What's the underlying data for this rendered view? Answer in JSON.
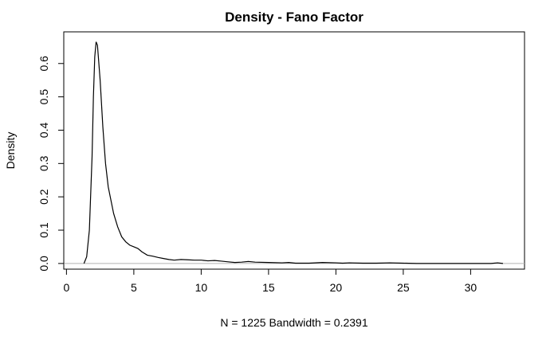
{
  "chart_data": {
    "type": "line",
    "title": "Density - Fano Factor",
    "xlabel": "N = 1225   Bandwidth = 0.2391",
    "ylabel": "Density",
    "xlim": [
      -0.2,
      34.0
    ],
    "ylim": [
      -0.017,
      0.695
    ],
    "xticks": [
      0,
      5,
      10,
      15,
      20,
      25,
      30
    ],
    "yticks": [
      0.0,
      0.1,
      0.2,
      0.3,
      0.4,
      0.5,
      0.6
    ],
    "baseline": 0,
    "grid": false,
    "series": [
      {
        "x": [
          1.3,
          1.5,
          1.7,
          1.9,
          2.0,
          2.1,
          2.2,
          2.3,
          2.5,
          2.7,
          2.9,
          3.1,
          3.3,
          3.5,
          3.8,
          4.1,
          4.4,
          4.7,
          5.0,
          5.3,
          5.6,
          6.0,
          6.4,
          6.8,
          7.2,
          7.6,
          8.0,
          8.5,
          9.0,
          9.5,
          10.0,
          10.5,
          11.0,
          11.5,
          12.0,
          12.5,
          13.0,
          13.5,
          14.0,
          15.0,
          16.0,
          16.5,
          17.0,
          18.0,
          19.0,
          20.0,
          20.5,
          21.0,
          22.0,
          23.0,
          24.0,
          25.0,
          26.0,
          28.0,
          30.0,
          31.5,
          32.0,
          32.4
        ],
        "y": [
          0.0,
          0.02,
          0.1,
          0.32,
          0.5,
          0.62,
          0.665,
          0.655,
          0.55,
          0.41,
          0.3,
          0.23,
          0.19,
          0.15,
          0.11,
          0.08,
          0.065,
          0.055,
          0.05,
          0.045,
          0.035,
          0.025,
          0.022,
          0.018,
          0.015,
          0.012,
          0.01,
          0.012,
          0.011,
          0.01,
          0.01,
          0.008,
          0.009,
          0.007,
          0.005,
          0.003,
          0.004,
          0.006,
          0.004,
          0.003,
          0.002,
          0.003,
          0.001,
          0.001,
          0.003,
          0.002,
          0.001,
          0.002,
          0.001,
          0.001,
          0.002,
          0.001,
          0.0,
          0.0,
          0.0,
          0.0,
          0.002,
          0.0
        ]
      }
    ]
  }
}
